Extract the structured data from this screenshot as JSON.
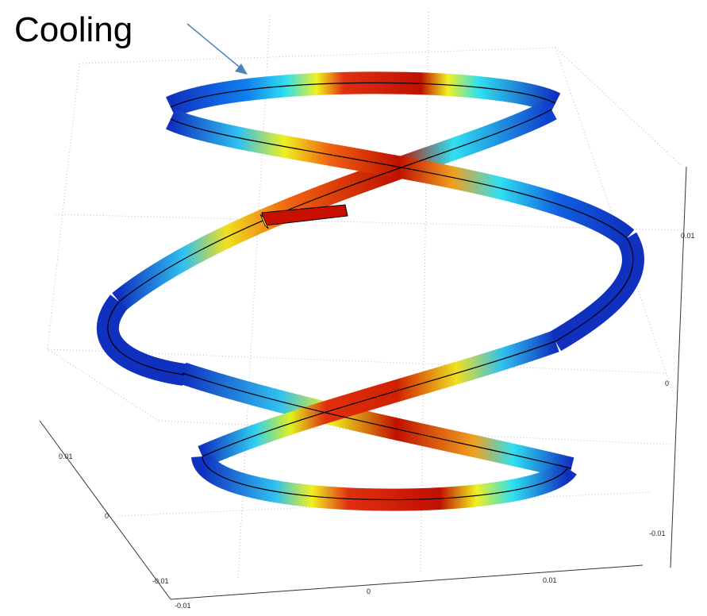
{
  "annotation": "Cooling",
  "axes": {
    "x": {
      "ticks": [
        "-0.01",
        "0",
        "0.01"
      ]
    },
    "y": {
      "ticks": [
        "0.01",
        "0",
        "-0.01"
      ]
    },
    "z": {
      "ticks": [
        "0.01",
        "0",
        "-0.01"
      ]
    }
  }
}
